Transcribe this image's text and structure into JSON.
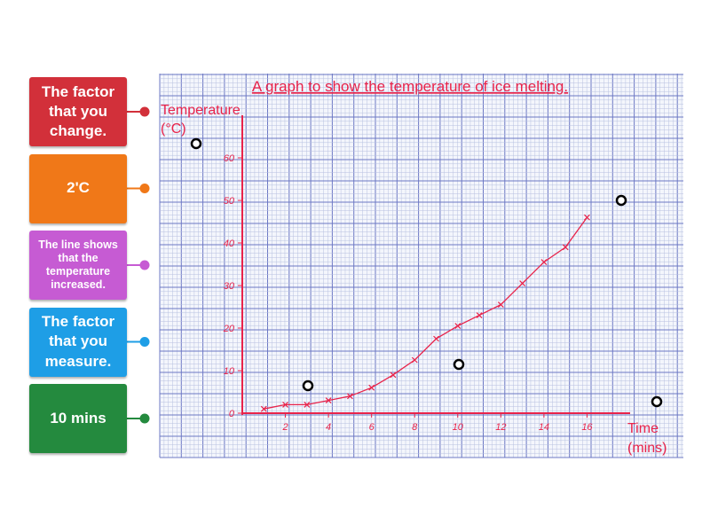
{
  "labels": [
    {
      "text": "The factor that you change.",
      "color": "#d2303a"
    },
    {
      "text": "2'C",
      "color": "#f07818"
    },
    {
      "text": "The line shows that the temperature increased.",
      "color": "#c65bd3"
    },
    {
      "text": "The factor that you measure.",
      "color": "#1e9ee6"
    },
    {
      "text": "10 mins",
      "color": "#248a3e"
    }
  ],
  "chart_data": {
    "type": "line",
    "title": "A graph to show the temperature of ice melting.",
    "y_label": "Temperature (°C)",
    "x_label": "Time (mins)",
    "x": [
      1,
      2,
      3,
      4,
      5,
      6,
      7,
      8,
      9,
      10,
      11,
      12,
      13,
      14,
      15,
      16
    ],
    "series": [
      {
        "name": "Temperature",
        "color": "#e8234a",
        "values": [
          1,
          2,
          2,
          3,
          4,
          6,
          9,
          12.5,
          17.5,
          20.5,
          23,
          25.5,
          30.5,
          35.5,
          39,
          46
        ]
      }
    ],
    "xlim": [
      0,
      18
    ],
    "ylim": [
      0,
      70
    ],
    "xticks": [
      2,
      4,
      6,
      8,
      10,
      12,
      14,
      16
    ],
    "yticks": [
      0,
      10,
      20,
      30,
      40,
      50,
      60
    ]
  }
}
